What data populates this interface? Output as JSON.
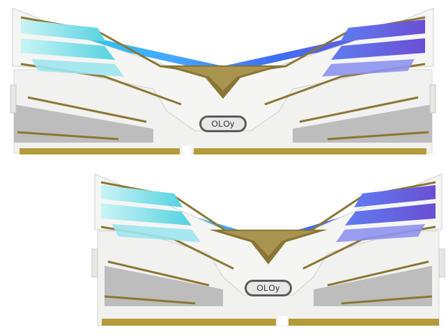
{
  "product": {
    "brand_text": "OLOy",
    "module_count": 2,
    "colors": {
      "heatsink": "#f4f4f2",
      "gold_trim": "#8a7634",
      "gray_panel": "#b9b9b9",
      "contacts": "#b59b3a",
      "rgb_cyan": "#46d3e6",
      "rgb_blue": "#4d63f0",
      "rgb_purple": "#6a5ad8",
      "center_gold": "#8a7634"
    },
    "modules": [
      {
        "label": "top-ram-module",
        "logo": "OLOy"
      },
      {
        "label": "bottom-ram-module",
        "logo": "OLOy"
      }
    ]
  }
}
